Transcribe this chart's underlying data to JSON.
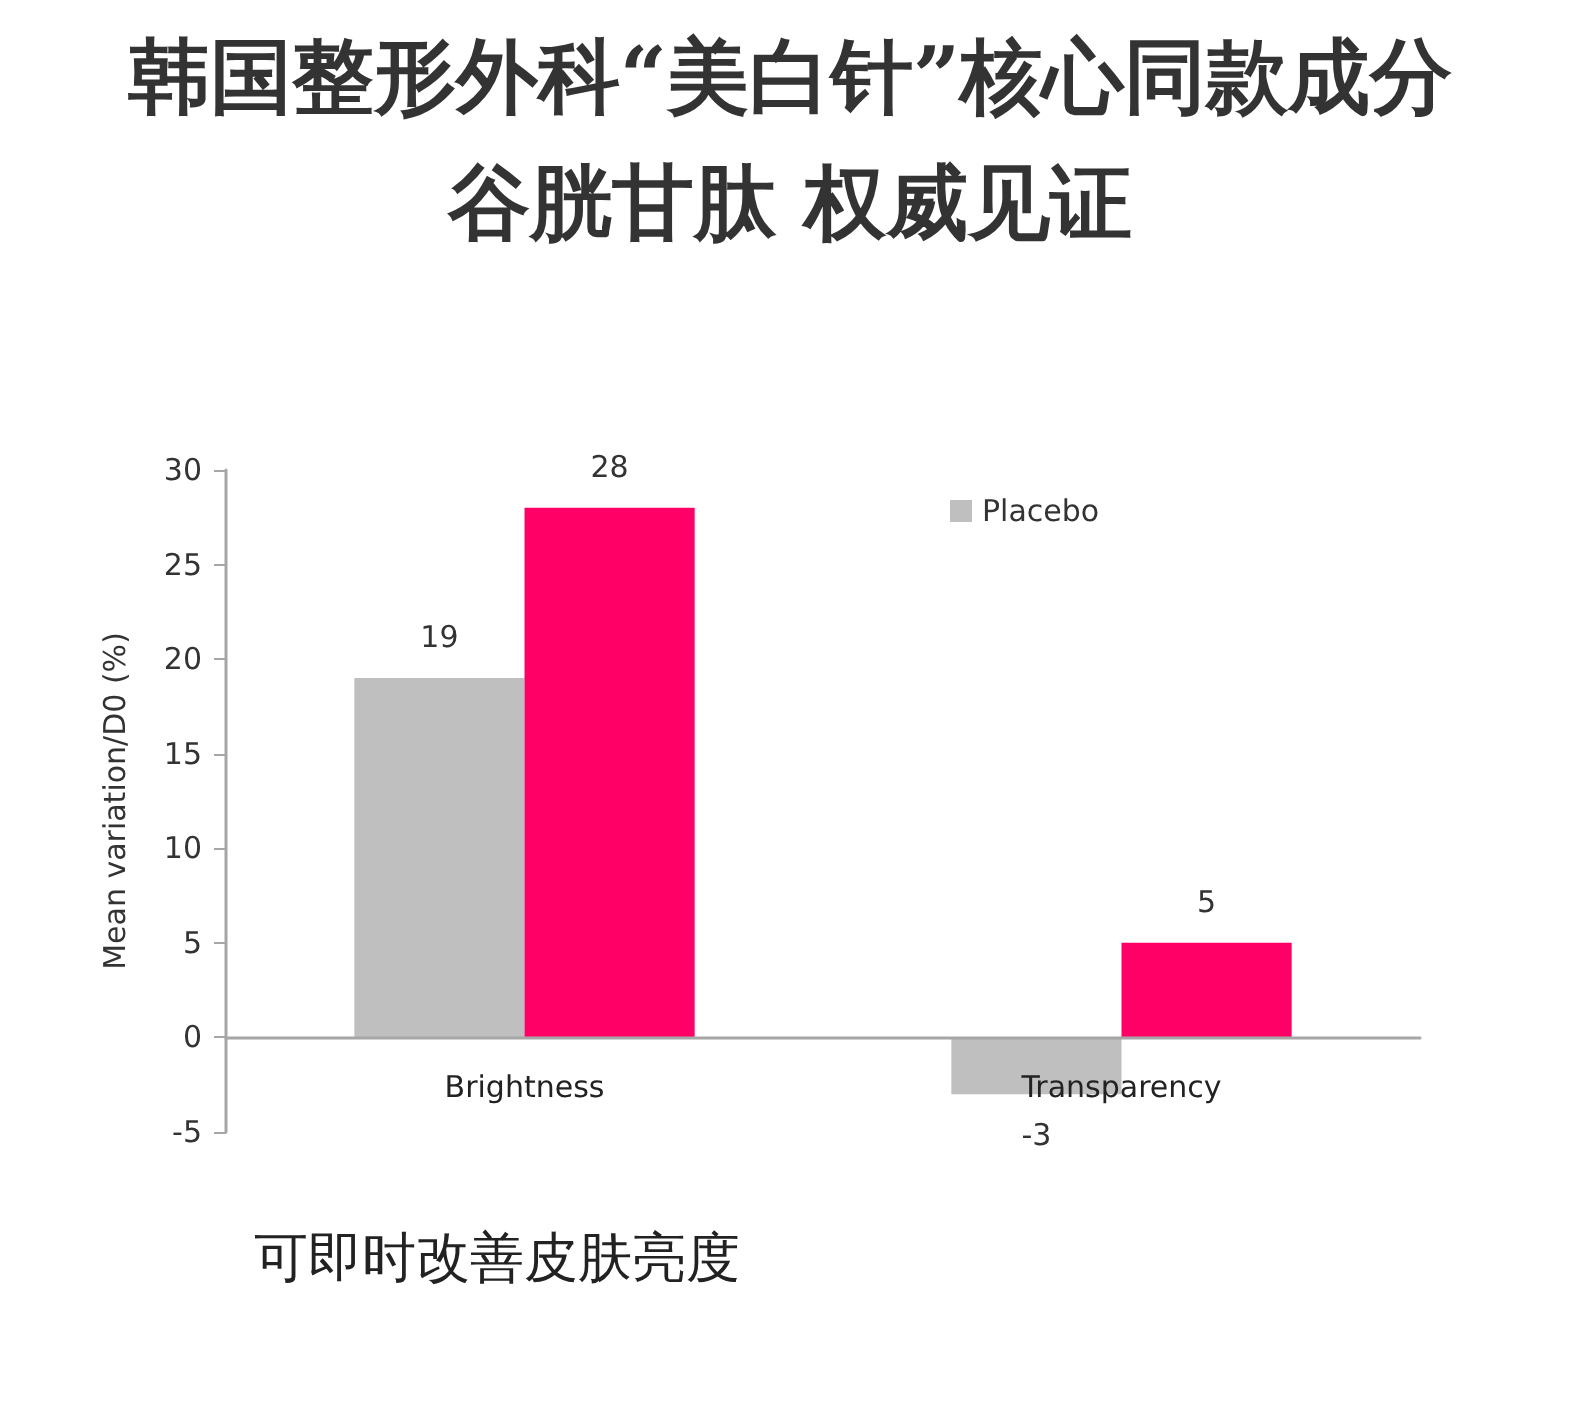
{
  "chart_data": {
    "type": "bar",
    "title": "韩国整形外科“美白针”核心同款成分",
    "subtitle": "谷胱甘肽 权威见证",
    "ylabel": "Mean variation/D0 (%)",
    "categories": [
      "Brightness",
      "Transparency"
    ],
    "series": [
      {
        "name": "Placebo",
        "color": "#bfbfbf",
        "values": [
          19,
          -3
        ]
      },
      {
        "color": "#ff0066",
        "values": [
          28,
          5
        ]
      }
    ],
    "ylim": [
      -5,
      30
    ],
    "yticks": [
      -5,
      0,
      5,
      10,
      15,
      20,
      25,
      30
    ],
    "grid": false,
    "legend": "top right",
    "data_labels": true,
    "annotations": [
      "可即时改善皮肤亮度"
    ]
  }
}
